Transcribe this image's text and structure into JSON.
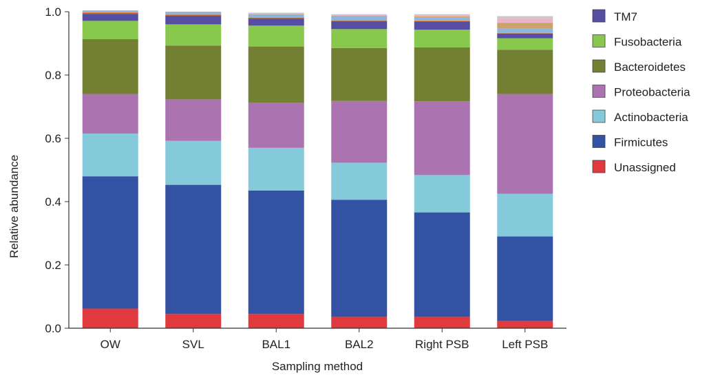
{
  "chart_data": {
    "type": "bar",
    "stacked": true,
    "xlabel": "Sampling method",
    "ylabel": "Relative abundance",
    "ylim": [
      0,
      1.0
    ],
    "yticks": [
      "0.0",
      "0.2",
      "0.4",
      "0.6",
      "0.8",
      "1.0"
    ],
    "categories": [
      "OW",
      "SVL",
      "BAL1",
      "BAL2",
      "Right PSB",
      "Left PSB"
    ],
    "legend_position": "right",
    "series": [
      {
        "name": "Unassigned",
        "color": "#e03a3e",
        "values": [
          0.062,
          0.045,
          0.045,
          0.036,
          0.036,
          0.023
        ]
      },
      {
        "name": "Firmicutes",
        "color": "#3352a4",
        "values": [
          0.418,
          0.408,
          0.39,
          0.37,
          0.33,
          0.267
        ]
      },
      {
        "name": "Actinobacteria",
        "color": "#85cadb",
        "values": [
          0.135,
          0.139,
          0.135,
          0.117,
          0.118,
          0.135
        ]
      },
      {
        "name": "Proteobacteria",
        "color": "#ab73b0",
        "values": [
          0.125,
          0.131,
          0.143,
          0.195,
          0.233,
          0.315
        ]
      },
      {
        "name": "Bacteroidetes",
        "color": "#737f33",
        "values": [
          0.173,
          0.17,
          0.177,
          0.167,
          0.17,
          0.14
        ]
      },
      {
        "name": "Fusobacteria",
        "color": "#88c94d",
        "values": [
          0.058,
          0.067,
          0.066,
          0.06,
          0.056,
          0.036
        ]
      },
      {
        "name": "TM7",
        "color": "#554ea3",
        "values": [
          0.022,
          0.026,
          0.022,
          0.025,
          0.026,
          0.015
        ]
      }
    ],
    "minor_taxa": {
      "colors": [
        "#7a4a24",
        "#ee7f2d",
        "#8fb5dc",
        "#c9a36b",
        "#e9b6c9",
        "#c7c7c7"
      ],
      "values": [
        [
          0.002,
          0.002,
          0.002,
          0.001,
          0.001,
          0.001
        ],
        [
          0.003,
          0.004,
          0.002,
          0.002,
          0.002,
          0.001
        ],
        [
          0.006,
          0.008,
          0.01,
          0.012,
          0.01,
          0.014
        ],
        [
          0.0,
          0.0,
          0.001,
          0.002,
          0.003,
          0.018
        ],
        [
          0.0,
          0.0,
          0.003,
          0.003,
          0.004,
          0.015
        ],
        [
          0.0,
          0.0,
          0.001,
          0.002,
          0.003,
          0.006
        ]
      ]
    },
    "legend_order": [
      "TM7",
      "Fusobacteria",
      "Bacteroidetes",
      "Proteobacteria",
      "Actinobacteria",
      "Firmicutes",
      "Unassigned"
    ]
  }
}
